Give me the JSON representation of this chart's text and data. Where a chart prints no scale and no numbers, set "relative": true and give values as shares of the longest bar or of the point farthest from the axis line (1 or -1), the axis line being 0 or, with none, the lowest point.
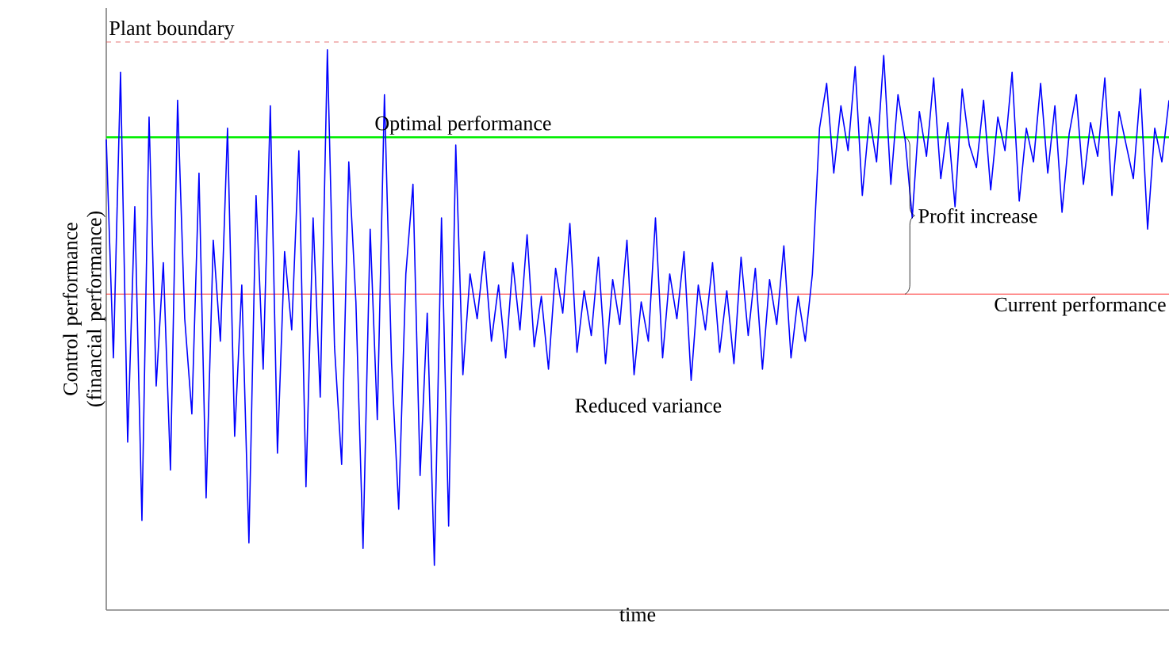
{
  "chart_data": {
    "type": "line",
    "relative": true,
    "xlabel": "time",
    "ylabel": "Control performance (financial performance)",
    "categories": [
      null,
      null,
      null,
      null,
      null,
      null,
      null,
      null,
      null,
      null,
      null,
      null,
      null,
      null,
      null,
      null,
      null,
      null,
      null,
      null,
      null,
      null,
      null,
      null,
      null,
      null,
      null,
      null,
      null,
      null,
      null,
      null,
      null,
      null,
      null,
      null,
      null,
      null,
      null,
      null,
      null,
      null,
      null,
      null,
      null,
      null,
      null,
      null,
      null,
      null,
      null,
      null,
      null,
      null,
      null,
      null,
      null,
      null,
      null,
      null,
      null,
      null,
      null,
      null,
      null,
      null,
      null,
      null,
      null,
      null,
      null,
      null,
      null,
      null,
      null,
      null,
      null,
      null,
      null,
      null,
      null,
      null,
      null,
      null,
      null,
      null,
      null,
      null,
      null,
      null,
      null,
      null,
      null,
      null,
      null,
      null,
      null,
      null,
      null,
      null,
      null,
      null,
      null,
      null,
      null,
      null,
      null,
      null,
      null,
      null,
      null,
      null,
      null,
      null,
      null,
      null,
      null,
      null,
      null,
      null,
      null,
      null,
      null,
      null,
      null,
      null,
      null,
      null,
      null,
      null,
      null,
      null,
      null,
      null,
      null,
      null,
      null,
      null,
      null,
      null,
      null,
      null,
      null,
      null,
      null,
      null,
      null,
      null,
      null,
      null
    ],
    "series": [
      {
        "color": "#0000ff",
        "values": [
          0.84,
          0.45,
          0.96,
          0.3,
          0.72,
          0.16,
          0.88,
          0.4,
          0.62,
          0.25,
          0.91,
          0.52,
          0.35,
          0.78,
          0.2,
          0.66,
          0.48,
          0.86,
          0.31,
          0.58,
          0.12,
          0.74,
          0.43,
          0.9,
          0.28,
          0.64,
          0.5,
          0.82,
          0.22,
          0.7,
          0.38,
          1.0,
          0.47,
          0.26,
          0.8,
          0.55,
          0.11,
          0.68,
          0.34,
          0.92,
          0.44,
          0.18,
          0.6,
          0.76,
          0.24,
          0.53,
          0.08,
          0.7,
          0.15,
          0.83,
          0.42,
          0.6,
          0.52,
          0.64,
          0.48,
          0.58,
          0.45,
          0.62,
          0.5,
          0.67,
          0.47,
          0.56,
          0.43,
          0.61,
          0.53,
          0.69,
          0.46,
          0.57,
          0.49,
          0.63,
          0.44,
          0.59,
          0.51,
          0.66,
          0.42,
          0.55,
          0.48,
          0.7,
          0.45,
          0.6,
          0.52,
          0.64,
          0.41,
          0.58,
          0.5,
          0.62,
          0.46,
          0.57,
          0.44,
          0.63,
          0.49,
          0.61,
          0.43,
          0.59,
          0.51,
          0.65,
          0.45,
          0.56,
          0.48,
          0.6,
          0.86,
          0.94,
          0.78,
          0.9,
          0.82,
          0.97,
          0.74,
          0.88,
          0.8,
          0.99,
          0.76,
          0.92,
          0.84,
          0.7,
          0.89,
          0.81,
          0.95,
          0.77,
          0.87,
          0.72,
          0.93,
          0.83,
          0.79,
          0.91,
          0.75,
          0.88,
          0.82,
          0.96,
          0.73,
          0.86,
          0.8,
          0.94,
          0.78,
          0.9,
          0.71,
          0.85,
          0.92,
          0.76,
          0.87,
          0.81,
          0.95,
          0.74,
          0.89,
          0.83,
          0.77,
          0.93,
          0.68,
          0.86,
          0.8,
          0.91
        ]
      }
    ],
    "ref_lines": [
      {
        "axis": "y",
        "value": 1.014,
        "label": "Plant boundary",
        "color": "#e05050",
        "line_style": "dashed"
      },
      {
        "axis": "y",
        "value": 0.844,
        "label": "Optimal performance",
        "color": "#00ee00",
        "line_style": "solid"
      },
      {
        "axis": "y",
        "value": 0.564,
        "label": "Current performance",
        "color": "#ff0000",
        "line_style": "solid"
      }
    ],
    "annotations": [
      "Reduced variance",
      "Profit increase"
    ]
  }
}
